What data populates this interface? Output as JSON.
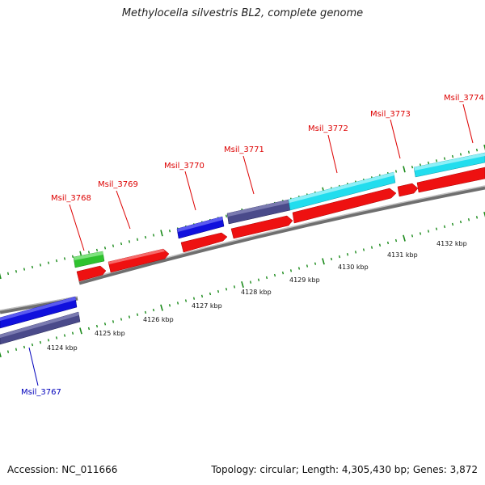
{
  "title": "Methylocella silvestris BL2, complete genome",
  "footer": {
    "accession": "Accession: NC_011666",
    "topology": "Topology: circular; Length: 4,305,430 bp; Genes: 3,872"
  },
  "colors": {
    "forward_gene_label": "#dd0000",
    "reverse_gene_label": "#0000bb",
    "tick": "#1a8a1a",
    "backbone": "#8a8a8a",
    "cds_red": "#ee1111",
    "cds_blue": "#1010dd",
    "cds_slate": "#4a4a8a",
    "cds_cyan": "#22ddee",
    "cds_green": "#33cc33"
  },
  "scale_labels": [
    "4124 kbp",
    "4125 kbp",
    "4126 kbp",
    "4127 kbp",
    "4128 kbp",
    "4129 kbp",
    "4130 kbp",
    "4131 kbp",
    "4132 kbp"
  ],
  "gene_labels": [
    {
      "name": "Msil_3767",
      "strand": "reverse"
    },
    {
      "name": "Msil_3768",
      "strand": "forward"
    },
    {
      "name": "Msil_3769",
      "strand": "forward"
    },
    {
      "name": "Msil_3770",
      "strand": "forward"
    },
    {
      "name": "Msil_3771",
      "strand": "forward"
    },
    {
      "name": "Msil_3772",
      "strand": "forward"
    },
    {
      "name": "Msil_3773",
      "strand": "forward"
    },
    {
      "name": "Msil_3774",
      "strand": "forward"
    }
  ]
}
